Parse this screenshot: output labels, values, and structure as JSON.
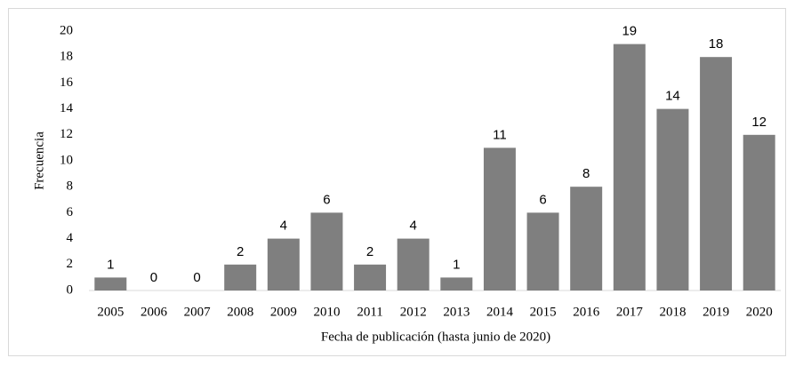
{
  "chart_data": {
    "type": "bar",
    "categories": [
      "2005",
      "2006",
      "2007",
      "2008",
      "2009",
      "2010",
      "2011",
      "2012",
      "2013",
      "2014",
      "2015",
      "2016",
      "2017",
      "2018",
      "2019",
      "2020"
    ],
    "values": [
      1,
      0,
      0,
      2,
      4,
      6,
      2,
      4,
      1,
      11,
      6,
      8,
      19,
      14,
      18,
      12
    ],
    "color": "#7f7f7f",
    "ylim": [
      0,
      20
    ],
    "yticks": [
      0,
      2,
      4,
      6,
      8,
      10,
      12,
      14,
      16,
      18,
      20
    ],
    "grid": false,
    "xlabel": "Fecha de publicación (hasta junio de 2020)",
    "ylabel": "Frecuencia"
  }
}
